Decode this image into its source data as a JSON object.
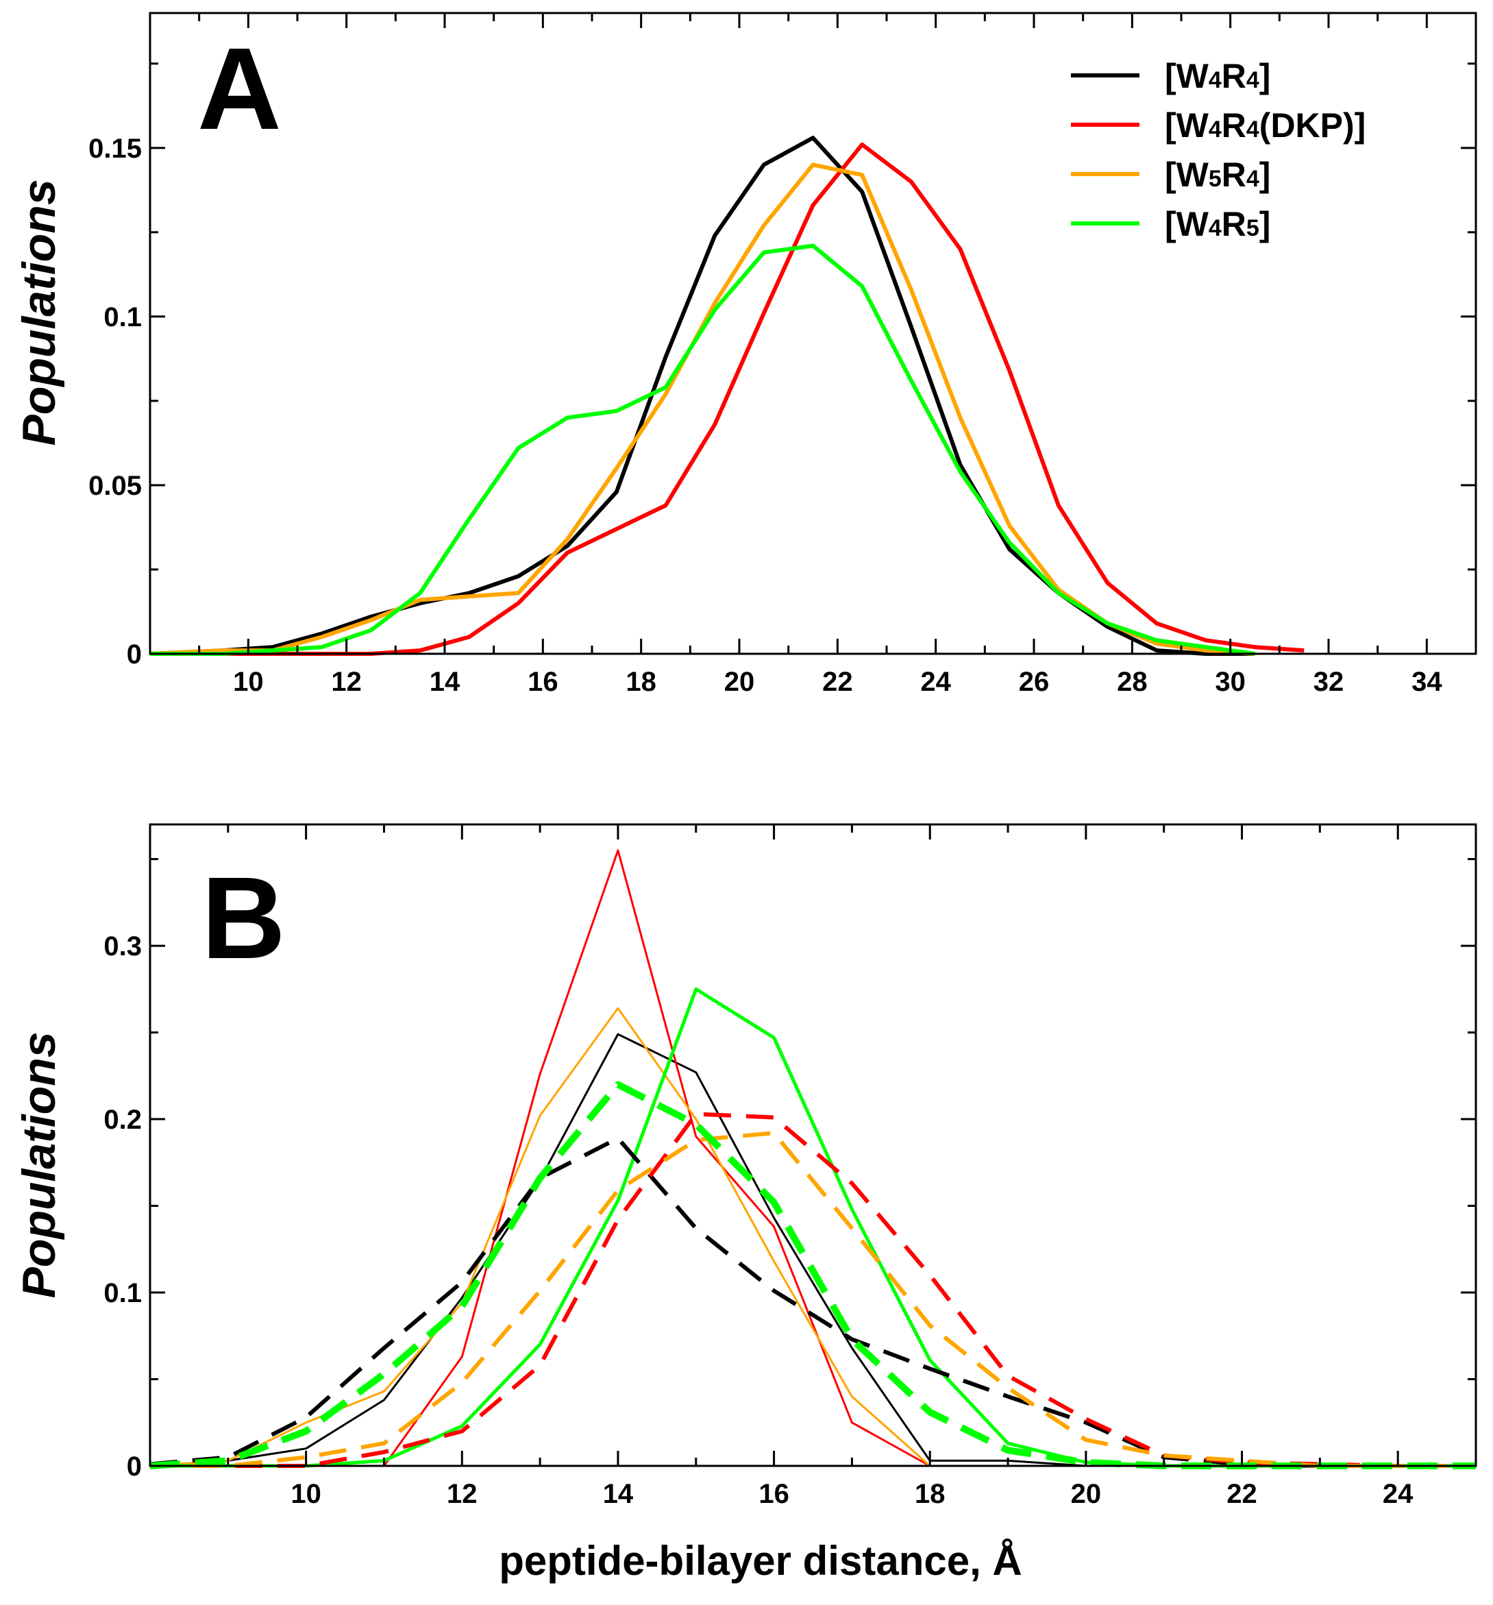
{
  "figure": {
    "xlabel": "peptide-bilayer distance, Å"
  },
  "chart_data": [
    {
      "type": "line",
      "panel": "A",
      "ylabel": "Populations",
      "xlim": [
        8,
        35
      ],
      "ylim": [
        0,
        0.19
      ],
      "xticks": [
        10,
        12,
        14,
        16,
        18,
        20,
        22,
        24,
        26,
        28,
        30,
        32,
        34
      ],
      "yticks": [
        0,
        0.05,
        0.1,
        0.15
      ],
      "ytick_labels": [
        "0",
        "0.05",
        "0.1",
        "0.15"
      ],
      "legend": {
        "placement": "top-right",
        "entries": [
          {
            "base": "[W",
            "s1": "4",
            "mid": "R",
            "s2": "4",
            "tail": "]",
            "color": "#000000"
          },
          {
            "base": "[W",
            "s1": "4",
            "mid": "R",
            "s2": "4",
            "tail": "(DKP)]",
            "color": "#ff0000"
          },
          {
            "base": "[W",
            "s1": "5",
            "mid": "R",
            "s2": "4",
            "tail": "]",
            "color": "#ffa500"
          },
          {
            "base": "[W",
            "s1": "4",
            "mid": "R",
            "s2": "5",
            "tail": "]",
            "color": "#00ff00"
          }
        ]
      },
      "series": [
        {
          "name": "[W4R4]",
          "color": "#000000",
          "style": "solid",
          "width": 6,
          "x": [
            8,
            9.5,
            10.5,
            11.5,
            12.5,
            13.5,
            14.5,
            15.5,
            16.5,
            17.5,
            18.5,
            19.5,
            20.5,
            21.5,
            22.5,
            23.5,
            24.5,
            25.5,
            26.5,
            27.5,
            28.5,
            29.5,
            30.5
          ],
          "y": [
            0,
            0.001,
            0.002,
            0.006,
            0.011,
            0.015,
            0.018,
            0.023,
            0.032,
            0.048,
            0.088,
            0.124,
            0.145,
            0.153,
            0.137,
            0.097,
            0.056,
            0.031,
            0.018,
            0.008,
            0.001,
            0,
            0
          ]
        },
        {
          "name": "[W4R4(DKP)]",
          "color": "#ff0000",
          "style": "solid",
          "width": 6,
          "x": [
            8,
            9.5,
            10.5,
            11.5,
            12.5,
            13.5,
            14.5,
            15.5,
            16.5,
            17.5,
            18.5,
            19.5,
            20.5,
            21.5,
            22.5,
            23.5,
            24.5,
            25.5,
            26.5,
            27.5,
            28.5,
            29.5,
            30.5,
            31.5
          ],
          "y": [
            0,
            0,
            0,
            0,
            0,
            0.001,
            0.005,
            0.015,
            0.03,
            0.037,
            0.044,
            0.068,
            0.101,
            0.133,
            0.151,
            0.14,
            0.12,
            0.084,
            0.044,
            0.021,
            0.009,
            0.004,
            0.002,
            0.001
          ]
        },
        {
          "name": "[W5R4]",
          "color": "#ffa500",
          "style": "solid",
          "width": 6,
          "x": [
            8,
            9.5,
            10.5,
            11.5,
            12.5,
            13.5,
            14.5,
            15.5,
            16.5,
            17.5,
            18.5,
            19.5,
            20.5,
            21.5,
            22.5,
            23.5,
            24.5,
            25.5,
            26.5,
            27.5,
            28.5,
            29.5,
            30.5
          ],
          "y": [
            0,
            0.001,
            0.001,
            0.005,
            0.01,
            0.016,
            0.017,
            0.018,
            0.034,
            0.055,
            0.077,
            0.104,
            0.127,
            0.145,
            0.142,
            0.108,
            0.07,
            0.038,
            0.019,
            0.009,
            0.003,
            0.001,
            0
          ]
        },
        {
          "name": "[W4R5]",
          "color": "#00ff00",
          "style": "solid",
          "width": 6,
          "x": [
            8,
            9.5,
            10.5,
            11.5,
            12.5,
            13.5,
            14.5,
            15.5,
            16.5,
            17.5,
            18.5,
            19.5,
            20.5,
            21.5,
            22.5,
            23.5,
            24.5,
            25.5,
            26.5,
            27.5,
            28.5,
            29.5,
            30.5
          ],
          "y": [
            0,
            0,
            0.001,
            0.002,
            0.007,
            0.018,
            0.04,
            0.061,
            0.07,
            0.072,
            0.079,
            0.102,
            0.119,
            0.121,
            0.109,
            0.081,
            0.054,
            0.033,
            0.018,
            0.009,
            0.004,
            0.002,
            0
          ]
        }
      ]
    },
    {
      "type": "line",
      "panel": "B",
      "ylabel": "Populations",
      "xlim": [
        8,
        25
      ],
      "ylim": [
        0,
        0.37
      ],
      "xticks": [
        10,
        12,
        14,
        16,
        18,
        20,
        22,
        24
      ],
      "yticks": [
        0,
        0.1,
        0.2,
        0.3
      ],
      "ytick_labels": [
        "0",
        "0.1",
        "0.2",
        "0.3"
      ],
      "series": [
        {
          "name": "[W4R4] solid",
          "color": "#000000",
          "style": "solid",
          "width": 3,
          "x": [
            8,
            9,
            10,
            11,
            12,
            13,
            14,
            15,
            16,
            17,
            18,
            19,
            20,
            21,
            22,
            23,
            24,
            25
          ],
          "y": [
            0,
            0.003,
            0.01,
            0.038,
            0.097,
            0.165,
            0.249,
            0.227,
            0.143,
            0.068,
            0.003,
            0.003,
            0,
            0,
            0,
            0,
            0,
            0
          ]
        },
        {
          "name": "[W4R4(DKP)] solid",
          "color": "#ff0000",
          "style": "solid",
          "width": 3,
          "x": [
            8,
            9,
            10,
            11,
            12,
            13,
            14,
            15,
            16,
            17,
            18,
            19,
            20,
            21,
            22,
            23,
            24,
            25
          ],
          "y": [
            0,
            0,
            0,
            0,
            0.063,
            0.226,
            0.355,
            0.19,
            0.138,
            0.025,
            0,
            0,
            0,
            0,
            0,
            0,
            0,
            0
          ]
        },
        {
          "name": "[W5R4] solid",
          "color": "#ffa500",
          "style": "solid",
          "width": 3,
          "x": [
            8,
            9,
            10,
            11,
            12,
            13,
            14,
            15,
            16,
            17,
            18,
            19,
            20,
            21,
            22,
            23,
            24,
            25
          ],
          "y": [
            0,
            0.003,
            0.025,
            0.043,
            0.094,
            0.202,
            0.264,
            0.2,
            0.118,
            0.04,
            0,
            0,
            0,
            0,
            0,
            0,
            0,
            0
          ]
        },
        {
          "name": "[W4R5] solid",
          "color": "#00ff00",
          "style": "solid",
          "width": 5,
          "x": [
            8,
            9,
            10,
            11,
            12,
            13,
            14,
            15,
            16,
            17,
            18,
            19,
            20,
            21,
            22,
            23,
            24,
            25
          ],
          "y": [
            0,
            0,
            0,
            0.003,
            0.023,
            0.07,
            0.153,
            0.275,
            0.247,
            0.148,
            0.061,
            0.013,
            0.002,
            0,
            0,
            0,
            0,
            0
          ]
        },
        {
          "name": "[W4R4] dashed",
          "color": "#000000",
          "style": "dashed",
          "width": 6,
          "x": [
            8,
            9,
            10,
            11,
            12,
            13,
            14,
            15,
            16,
            17,
            18,
            19,
            20,
            21,
            22,
            23,
            24,
            25
          ],
          "y": [
            0.001,
            0.005,
            0.028,
            0.068,
            0.106,
            0.166,
            0.189,
            0.137,
            0.101,
            0.073,
            0.056,
            0.04,
            0.025,
            0.005,
            0.001,
            0,
            0,
            0
          ]
        },
        {
          "name": "[W4R4(DKP)] dashed",
          "color": "#ff0000",
          "style": "dashed",
          "width": 6,
          "x": [
            8,
            9,
            10,
            11,
            12,
            13,
            14,
            15,
            16,
            17,
            18,
            19,
            20,
            21,
            22,
            23,
            24,
            25
          ],
          "y": [
            0,
            0,
            0,
            0.008,
            0.02,
            0.058,
            0.142,
            0.203,
            0.201,
            0.163,
            0.11,
            0.052,
            0.027,
            0.006,
            0.002,
            0.001,
            0,
            0
          ]
        },
        {
          "name": "[W5R4] dashed",
          "color": "#ffa500",
          "style": "dashed",
          "width": 6,
          "x": [
            8,
            9,
            10,
            11,
            12,
            13,
            14,
            15,
            16,
            17,
            18,
            19,
            20,
            21,
            22,
            23,
            24,
            25
          ],
          "y": [
            0,
            0,
            0.005,
            0.013,
            0.048,
            0.101,
            0.159,
            0.188,
            0.192,
            0.137,
            0.081,
            0.045,
            0.015,
            0.006,
            0.003,
            0,
            0,
            0
          ]
        },
        {
          "name": "[W4R5] dashed",
          "color": "#00ff00",
          "style": "dashed",
          "width": 10,
          "x": [
            8,
            9,
            10,
            11,
            12,
            13,
            14,
            15,
            16,
            17,
            18,
            19,
            20,
            21,
            22,
            23,
            24,
            25
          ],
          "y": [
            0,
            0.003,
            0.02,
            0.053,
            0.092,
            0.166,
            0.22,
            0.197,
            0.152,
            0.073,
            0.031,
            0.009,
            0.002,
            0,
            0,
            0,
            0,
            0
          ]
        }
      ]
    }
  ]
}
